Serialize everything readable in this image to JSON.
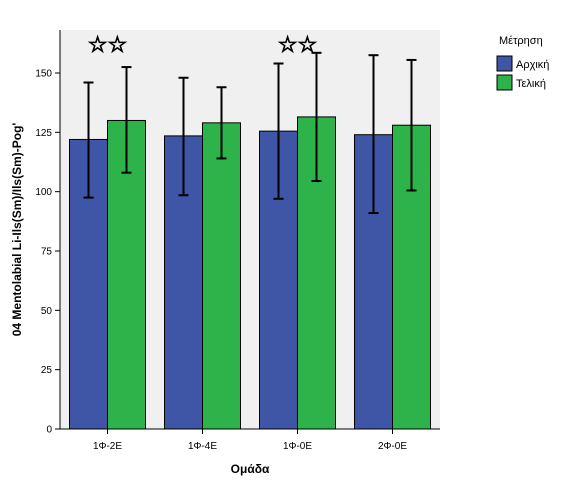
{
  "chart_data": {
    "type": "bar",
    "title": "",
    "xlabel": "Ομάδα",
    "ylabel": "04 Mentolabial Li-Ils(Sm)/Ils(Sm)-Pog'",
    "categories": [
      "1Φ-2Ε",
      "1Φ-4Ε",
      "1Φ-0Ε",
      "2Φ-0Ε"
    ],
    "ylim": [
      0,
      170
    ],
    "yticks": [
      0,
      25,
      50,
      75,
      100,
      125,
      150
    ],
    "legend_title": "Μέτρηση",
    "legend_position": "right",
    "grid": false,
    "series": [
      {
        "name": "Αρχική",
        "color": "#3f55a6",
        "values": [
          122,
          123.5,
          125.5,
          124
        ],
        "error_low": [
          97.5,
          98.5,
          97,
          91
        ],
        "error_high": [
          146,
          148,
          154,
          157.5
        ]
      },
      {
        "name": "Τελική",
        "color": "#2db34a",
        "values": [
          130,
          129,
          131.5,
          128
        ],
        "error_low": [
          108,
          114,
          104.5,
          100.5
        ],
        "error_high": [
          152.5,
          144,
          158.5,
          155.5
        ]
      }
    ],
    "annotations": [
      {
        "category": "1Φ-2Ε",
        "symbol": "☆☆"
      },
      {
        "category": "1Φ-0Ε",
        "symbol": "☆☆"
      }
    ]
  }
}
